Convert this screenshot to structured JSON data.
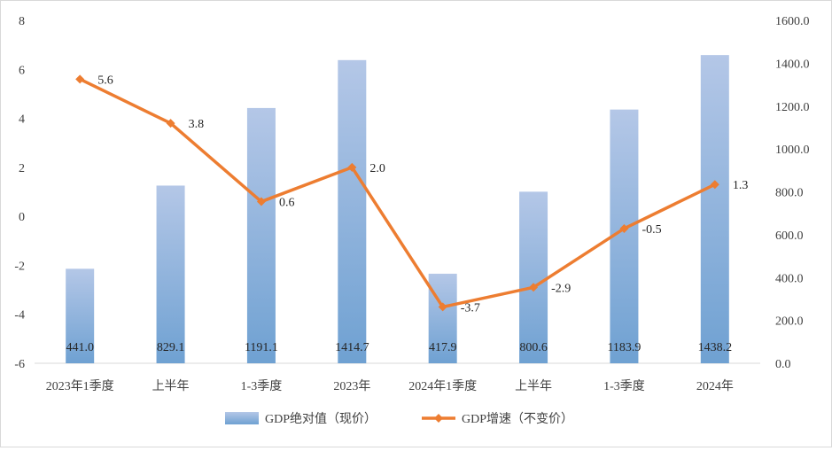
{
  "chart_data": {
    "type": "bar",
    "categories": [
      "2023年1季度",
      "上半年",
      "1-3季度",
      "2023年",
      "2024年1季度",
      "上半年",
      "1-3季度",
      "2024年"
    ],
    "series": [
      {
        "name": "GDP绝对值（现价）",
        "type": "bar",
        "axis": "right",
        "values": [
          441.0,
          829.1,
          1191.1,
          1414.7,
          417.9,
          800.6,
          1183.9,
          1438.2
        ],
        "labels": [
          "441.0",
          "829.1",
          "1191.1",
          "1414.7",
          "417.9",
          "800.6",
          "1183.9",
          "1438.2"
        ]
      },
      {
        "name": "GDP增速（不变价）",
        "type": "line",
        "axis": "left",
        "values": [
          5.6,
          3.8,
          0.6,
          2.0,
          -3.7,
          -2.9,
          -0.5,
          1.3
        ],
        "labels": [
          "5.6",
          "3.8",
          "0.6",
          "2.0",
          "-3.7",
          "-2.9",
          "-0.5",
          "1.3"
        ]
      }
    ],
    "left_axis": {
      "ylim": [
        -6,
        8
      ],
      "ticks": [
        "-6",
        "-4",
        "-2",
        "0",
        "2",
        "4",
        "6",
        "8"
      ]
    },
    "right_axis": {
      "ylim": [
        0,
        1600
      ],
      "ticks": [
        "0.0",
        "200.0",
        "400.0",
        "600.0",
        "800.0",
        "1000.0",
        "1200.0",
        "1400.0",
        "1600.0"
      ]
    },
    "grid": false,
    "legend_position": "bottom",
    "colors": {
      "bar_top": "#b4c7e7",
      "bar_bottom": "#6fa1d2",
      "line": "#ed7d31",
      "axis": "#d9d9d9"
    }
  }
}
